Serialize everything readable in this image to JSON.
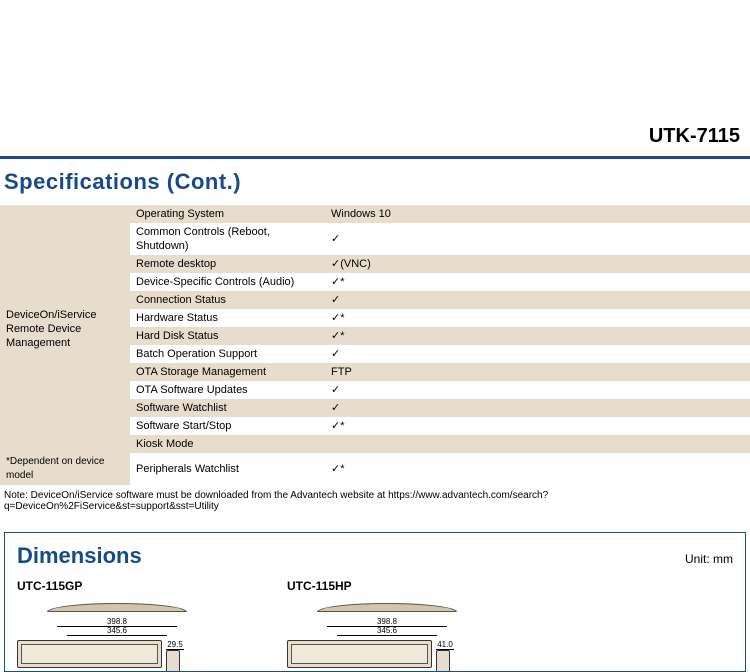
{
  "header": {
    "product": "UTK-7115"
  },
  "section_title": "Specifications (Cont.)",
  "spec": {
    "category": "DeviceOn/iService\nRemote Device Management",
    "footnote": "*Dependent on device model",
    "rows": [
      {
        "item": "Operating System",
        "value": "Windows 10",
        "alt": true
      },
      {
        "item": "Common Controls (Reboot, Shutdown)",
        "value": "✓",
        "alt": false
      },
      {
        "item": "Remote desktop",
        "value": "✓(VNC)",
        "alt": true
      },
      {
        "item": "Device-Specific Controls (Audio)",
        "value": "✓*",
        "alt": false
      },
      {
        "item": "Connection Status",
        "value": "✓",
        "alt": true
      },
      {
        "item": "Hardware Status",
        "value": "✓*",
        "alt": false
      },
      {
        "item": "Hard Disk Status",
        "value": "✓*",
        "alt": true
      },
      {
        "item": "Batch Operation Support",
        "value": "✓",
        "alt": false
      },
      {
        "item": "OTA Storage Management",
        "value": "FTP",
        "alt": true
      },
      {
        "item": "OTA Software Updates",
        "value": "✓",
        "alt": false
      },
      {
        "item": "Software Watchlist",
        "value": "✓",
        "alt": true
      },
      {
        "item": "Software Start/Stop",
        "value": "✓*",
        "alt": false
      },
      {
        "item": "Kiosk Mode",
        "value": "",
        "alt": true
      },
      {
        "item": "Peripherals Watchlist",
        "value": "✓*",
        "alt": false
      }
    ]
  },
  "note": "Note: DeviceOn/iService software must be downloaded from the Advantech website at https://www.advantech.com/search?q=DeviceOn%2FiService&st=support&sst=Utility",
  "dimensions": {
    "title": "Dimensions",
    "unit_label": "Unit: mm",
    "models": [
      {
        "name": "UTC-115GP",
        "width_outer": "398.8",
        "width_inner": "345.6",
        "depth": "29.5"
      },
      {
        "name": "UTC-115HP",
        "width_outer": "398.8",
        "width_inner": "345.6",
        "depth": "41.0"
      }
    ]
  },
  "colors": {
    "brand_blue": "#174a8a",
    "row_alt_bg": "#e8dccd",
    "text": "#000000",
    "background": "#ffffff",
    "device_fill": "#d4c4a8"
  }
}
